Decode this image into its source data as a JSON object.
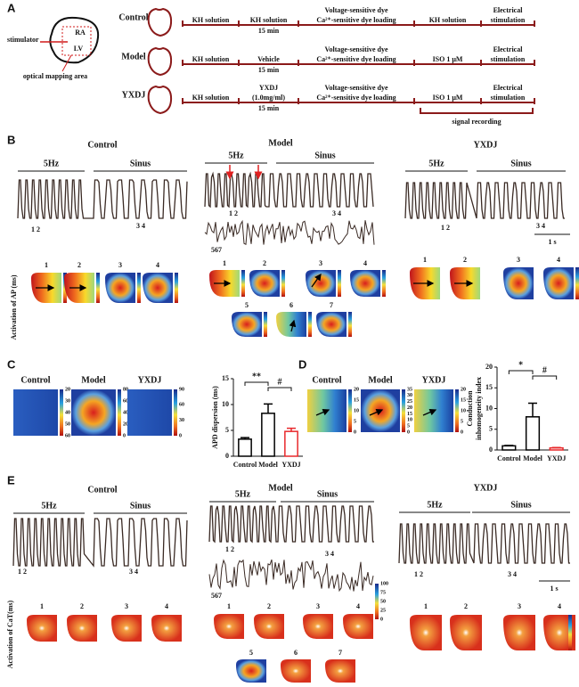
{
  "chart_data": [
    {
      "type": "bar",
      "ylabel": [
        "APD dispersion (ms)"
      ],
      "categories": [
        "Control",
        "Model",
        "YXDJ"
      ],
      "values": [
        3.3,
        8.3,
        4.8
      ],
      "errors": [
        0.3,
        1.8,
        0.6
      ],
      "colors": [
        "#000000",
        "#000000",
        "#e8282b"
      ],
      "ylim": [
        0,
        15
      ],
      "yticks": [
        0,
        5,
        10,
        15
      ],
      "annotations": [
        "**",
        "#"
      ]
    },
    {
      "type": "bar",
      "ylabel": [
        "Conduction",
        "inhomogeneity index"
      ],
      "categories": [
        "Control",
        "Model",
        "YXDJ"
      ],
      "values": [
        1.0,
        8.0,
        0.5
      ],
      "errors": [
        0.1,
        3.3,
        0.1
      ],
      "colors": [
        "#000000",
        "#000000",
        "#e8282b"
      ],
      "ylim": [
        0,
        20
      ],
      "yticks": [
        0,
        5,
        10,
        15,
        20
      ],
      "annotations": [
        "*",
        "#"
      ]
    }
  ],
  "figure": {
    "panel_labels": [
      "A",
      "B",
      "C",
      "D",
      "E"
    ],
    "a": {
      "diagram": {
        "stimulator": "stimulator",
        "ra": "RA",
        "lv": "LV",
        "area": "optical mapping area"
      },
      "rows": [
        {
          "group": "Control",
          "steps": [
            {
              "above": [
                "KH solution"
              ],
              "below": []
            },
            {
              "above": [
                "KH solution"
              ],
              "below": [
                "15 min"
              ]
            },
            {
              "above": [
                "Voltage-sensitive dye",
                "Ca²⁺-sensitive dye  loading"
              ],
              "below": []
            },
            {
              "above": [
                "KH solution"
              ],
              "below": []
            },
            {
              "above": [
                "Electrical",
                "stimulation"
              ],
              "below": []
            }
          ]
        },
        {
          "group": "Model",
          "steps": [
            {
              "above": [
                "KH solution"
              ],
              "below": []
            },
            {
              "above": [
                "Vehicle"
              ],
              "below": [
                "15 min"
              ]
            },
            {
              "above": [
                "Voltage-sensitive dye",
                "Ca²⁺-sensitive dye  loading"
              ],
              "below": []
            },
            {
              "above": [
                "ISO 1 μM"
              ],
              "below": []
            },
            {
              "above": [
                "Electrical",
                "stimulation"
              ],
              "below": []
            }
          ]
        },
        {
          "group": "YXDJ",
          "steps": [
            {
              "above": [
                "KH solution"
              ],
              "below": []
            },
            {
              "above": [
                "YXDJ",
                "(1.0mg/ml)"
              ],
              "below": [
                "15 min"
              ]
            },
            {
              "above": [
                "Voltage-sensitive dye",
                "Ca²⁺-sensitive dye  loading"
              ],
              "below": []
            },
            {
              "above": [
                "ISO 1 μM"
              ],
              "below": []
            },
            {
              "above": [
                "Electrical",
                "stimulation"
              ],
              "below": []
            }
          ]
        }
      ],
      "recording": "signal recording"
    },
    "b": {
      "groups": [
        "Control",
        "Model",
        "YXDJ"
      ],
      "stim": "5Hz",
      "sinus": "Sinus",
      "pair1": "1 2",
      "pair2": "3 4",
      "triple": "567",
      "scale": "1 s",
      "ylabel": "Activation of AP (ms)",
      "map_numbers": [
        "1",
        "2",
        "3",
        "4",
        "5",
        "6",
        "7"
      ]
    },
    "c": {
      "groups": [
        "Control",
        "Model",
        "YXDJ"
      ],
      "colorbars": [
        [
          "20",
          "30",
          "40",
          "50",
          "60"
        ],
        [
          "80",
          "60",
          "40",
          "20",
          "0"
        ],
        [
          "90",
          "60",
          "30",
          "0"
        ]
      ]
    },
    "d": {
      "groups": [
        "Control",
        "Model",
        "YXDJ"
      ],
      "colorbars": [
        [
          "20",
          "15",
          "10",
          "5",
          "0"
        ],
        [
          "35",
          "30",
          "25",
          "20",
          "15",
          "10",
          "5",
          "0"
        ],
        [
          "20",
          "15",
          "10",
          "5",
          "0"
        ]
      ]
    },
    "e": {
      "groups": [
        "Control",
        "Model",
        "YXDJ"
      ],
      "stim": "5Hz",
      "sinus": "Sinus",
      "pair1": "1 2",
      "pair2": "3 4",
      "triple": "567",
      "scale": "1 s",
      "ylabel": "Activation of CaT(ms)",
      "map_numbers": [
        "1",
        "2",
        "3",
        "4",
        "5",
        "6",
        "7"
      ],
      "colorbar": [
        "100",
        "75",
        "50",
        "25",
        "0"
      ]
    }
  }
}
